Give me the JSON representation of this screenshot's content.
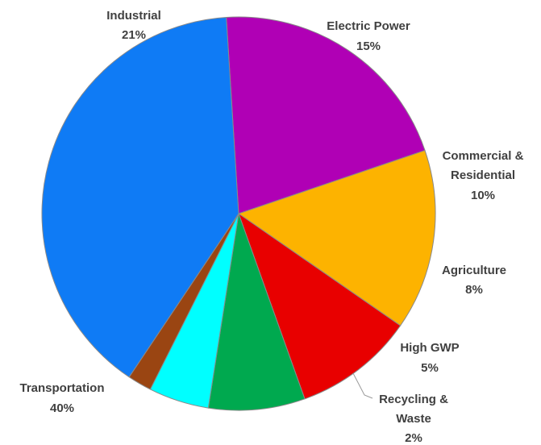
{
  "chart_data": {
    "type": "pie",
    "slices": [
      {
        "label": "Industrial",
        "pct_text": "21%",
        "value": 21,
        "color": "#B000B5"
      },
      {
        "label": "Electric Power",
        "pct_text": "15%",
        "value": 15,
        "color": "#FDB300"
      },
      {
        "label": "Commercial & Residential",
        "pct_text": "10%",
        "value": 10,
        "color": "#E80000"
      },
      {
        "label": "Agriculture",
        "pct_text": "8%",
        "value": 8,
        "color": "#00A94F"
      },
      {
        "label": "High GWP",
        "pct_text": "5%",
        "value": 5,
        "color": "#00FFFF"
      },
      {
        "label": "Recycling & Waste",
        "pct_text": "2%",
        "value": 2,
        "color": "#9A4512"
      },
      {
        "label": "Transportation",
        "pct_text": "40%",
        "value": 40,
        "color": "#0F7BF5"
      }
    ],
    "legend": "none"
  }
}
